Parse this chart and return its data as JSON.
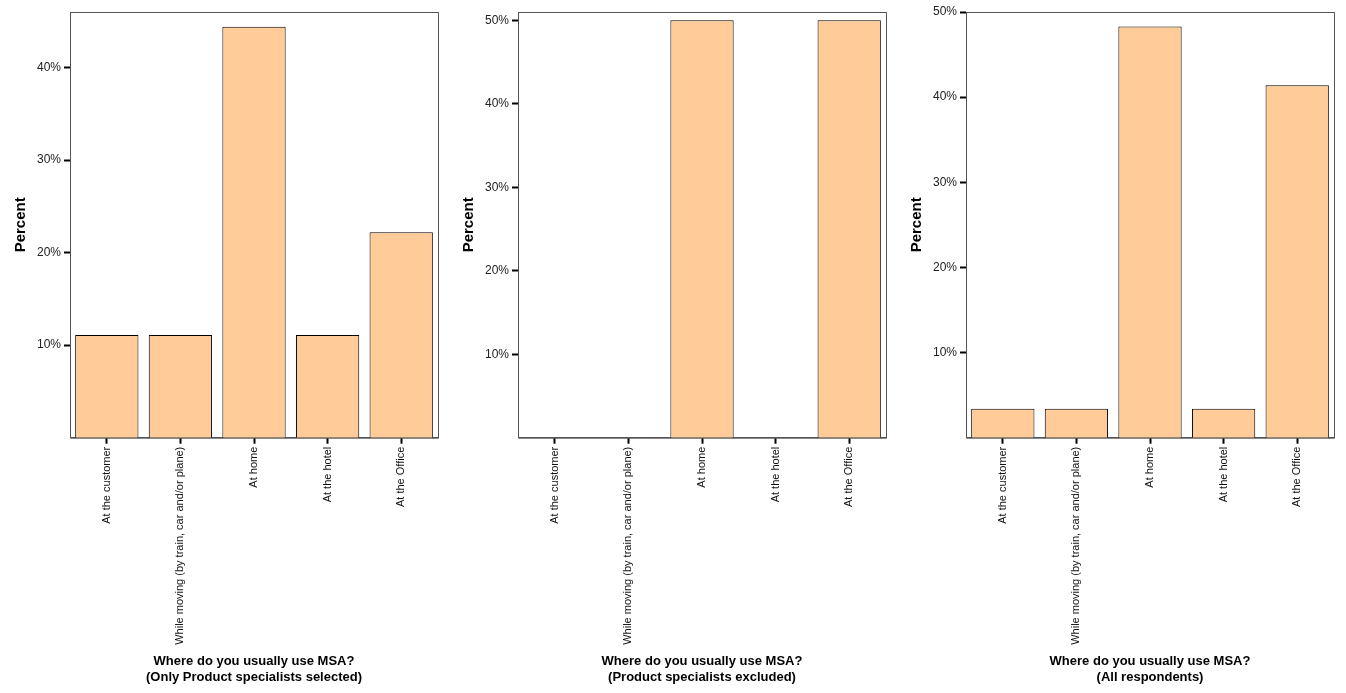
{
  "chart_data": [
    {
      "type": "bar",
      "xlabel": "Where do you usually use MSA?\n(Only Product specialists selected)",
      "ylabel": "Percent",
      "categories": [
        "At the customer",
        "While moving (by train, car and/or plane)",
        "At home",
        "At the hotel",
        "At the Office"
      ],
      "values": [
        11.1,
        11.1,
        44.4,
        11.1,
        22.2
      ],
      "color": "#ffcc99",
      "ylim": [
        0,
        46
      ],
      "yticks": [
        {
          "value": 10,
          "label": "10%"
        },
        {
          "value": 20,
          "label": "20%"
        },
        {
          "value": 30,
          "label": "30%"
        },
        {
          "value": 40,
          "label": "40%"
        }
      ],
      "grid": false,
      "legend": false
    },
    {
      "type": "bar",
      "xlabel": "Where do you usually use MSA?\n(Product specialists excluded)",
      "ylabel": "Percent",
      "categories": [
        "At the customer",
        "While moving (by train, car and/or plane)",
        "At home",
        "At the hotel",
        "At the Office"
      ],
      "values": [
        0,
        0,
        50,
        0,
        50
      ],
      "color": "#ffcc99",
      "ylim": [
        0,
        51
      ],
      "yticks": [
        {
          "value": 10,
          "label": "10%"
        },
        {
          "value": 20,
          "label": "20%"
        },
        {
          "value": 30,
          "label": "30%"
        },
        {
          "value": 40,
          "label": "40%"
        },
        {
          "value": 50,
          "label": "50%"
        }
      ],
      "grid": false,
      "legend": false
    },
    {
      "type": "bar",
      "xlabel": "Where do you usually use MSA?\n(All respondents)",
      "ylabel": "Percent",
      "categories": [
        "At the customer",
        "While moving (by train, car and/or plane)",
        "At home",
        "At the hotel",
        "At the Office"
      ],
      "values": [
        3.4,
        3.4,
        48.3,
        3.4,
        41.4
      ],
      "color": "#ffcc99",
      "ylim": [
        0,
        50
      ],
      "yticks": [
        {
          "value": 10,
          "label": "10%"
        },
        {
          "value": 20,
          "label": "20%"
        },
        {
          "value": 30,
          "label": "30%"
        },
        {
          "value": 40,
          "label": "40%"
        },
        {
          "value": 50,
          "label": "50%"
        }
      ],
      "grid": false,
      "legend": false
    }
  ]
}
